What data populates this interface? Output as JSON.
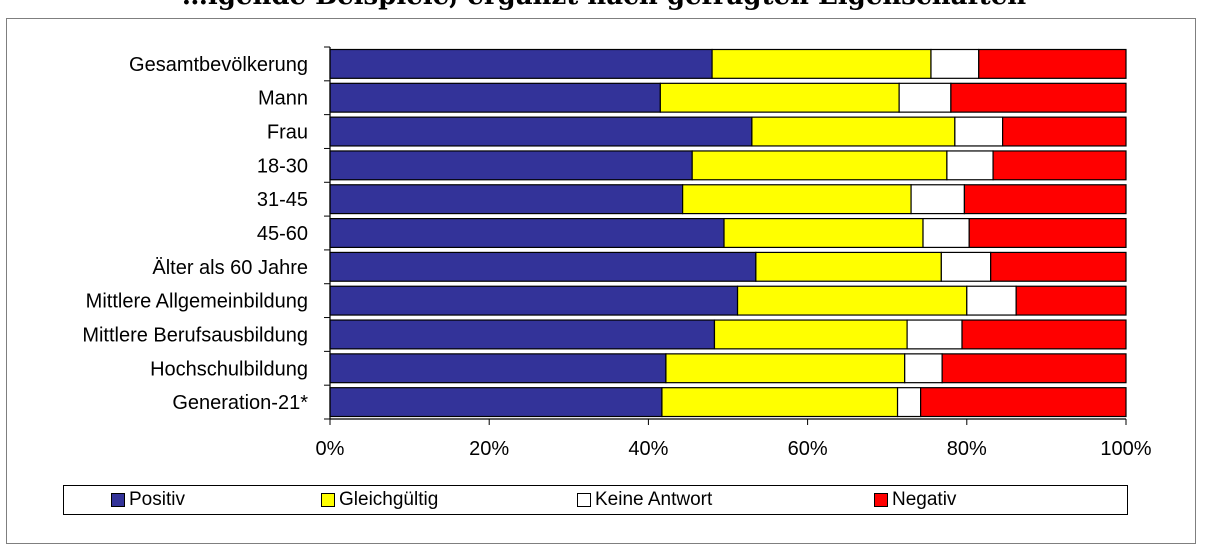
{
  "title": "…igende Beispiele, ergänzt nach gefragten Eigenschaften",
  "chart_data": {
    "type": "bar",
    "orientation": "horizontal",
    "stacked": "percent",
    "categories": [
      "Gesamtbevölkerung",
      "Mann",
      "Frau",
      "18-30",
      "31-45",
      "45-60",
      "Älter als 60 Jahre",
      "Mittlere Allgemeinbildung",
      "Mittlere Berufsausbildung",
      "Hochschulbildung",
      "Generation-21*"
    ],
    "series": [
      {
        "name": "Positiv",
        "color": "#333399",
        "values": [
          48,
          41.5,
          53,
          45.5,
          44.3,
          49.5,
          53.5,
          51.2,
          48.3,
          42.2,
          41.7
        ]
      },
      {
        "name": "Gleichgültig",
        "color": "#ffff00",
        "values": [
          27.5,
          30,
          25.5,
          32,
          28.7,
          25,
          23.3,
          28.8,
          24.2,
          30,
          29.6
        ]
      },
      {
        "name": "Keine Antwort",
        "color": "#ffffff",
        "values": [
          6,
          6.5,
          6,
          5.8,
          6.7,
          5.8,
          6.2,
          6.2,
          6.9,
          4.7,
          2.9
        ]
      },
      {
        "name": "Negativ",
        "color": "#ff0000",
        "values": [
          18.5,
          22,
          15.5,
          16.7,
          20.3,
          19.7,
          17,
          13.8,
          20.6,
          23.1,
          25.8
        ]
      }
    ],
    "x_ticks": [
      "0%",
      "20%",
      "40%",
      "60%",
      "80%",
      "100%"
    ],
    "xlim": [
      0,
      100
    ],
    "grid": false,
    "legend_position": "bottom"
  }
}
